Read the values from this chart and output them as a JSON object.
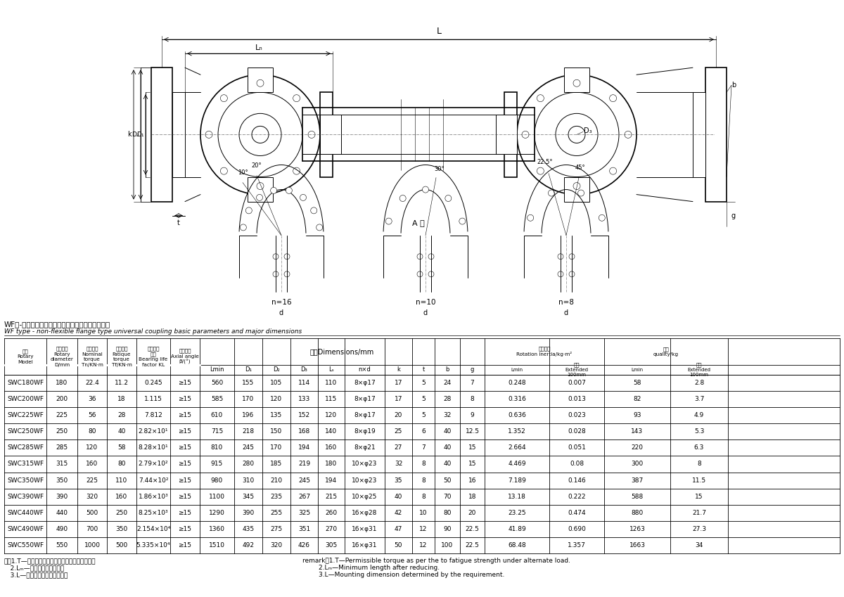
{
  "title_cn": "WF型-无伸缩法兰式万向联轴器基本参数和主要尺寸",
  "title_en": "WF type - non-flexible flange type universal coupling basic parameters and major dimensions",
  "background_color": "#ffffff",
  "table_rows": [
    [
      "SWC180WF",
      "180",
      "22.4",
      "11.2",
      "0.245",
      "≥15",
      "560",
      "155",
      "105",
      "114",
      "110",
      "8×φ17",
      "17",
      "5",
      "24",
      "7",
      "0.248",
      "0.007",
      "58",
      "2.8"
    ],
    [
      "SWC200WF",
      "200",
      "36",
      "18",
      "1.115",
      "≥15",
      "585",
      "170",
      "120",
      "133",
      "115",
      "8×φ17",
      "17",
      "5",
      "28",
      "8",
      "0.316",
      "0.013",
      "82",
      "3.7"
    ],
    [
      "SWC225WF",
      "225",
      "56",
      "28",
      "7.812",
      "≥15",
      "610",
      "196",
      "135",
      "152",
      "120",
      "8×φ17",
      "20",
      "5",
      "32",
      "9",
      "0.636",
      "0.023",
      "93",
      "4.9"
    ],
    [
      "SWC250WF",
      "250",
      "80",
      "40",
      "2.82×10¹",
      "≥15",
      "715",
      "218",
      "150",
      "168",
      "140",
      "8×φ19",
      "25",
      "6",
      "40",
      "12.5",
      "1.352",
      "0.028",
      "143",
      "5.3"
    ],
    [
      "SWC285WF",
      "285",
      "120",
      "58",
      "8.28×10¹",
      "≥15",
      "810",
      "245",
      "170",
      "194",
      "160",
      "8×φ21",
      "27",
      "7",
      "40",
      "15",
      "2.664",
      "0.051",
      "220",
      "6.3"
    ],
    [
      "SWC315WF",
      "315",
      "160",
      "80",
      "2.79×10²",
      "≥15",
      "915",
      "280",
      "185",
      "219",
      "180",
      "10×φ23",
      "32",
      "8",
      "40",
      "15",
      "4.469",
      "0.08",
      "300",
      "8"
    ],
    [
      "SWC350WF",
      "350",
      "225",
      "110",
      "7.44×10²",
      "≥15",
      "980",
      "310",
      "210",
      "245",
      "194",
      "10×φ23",
      "35",
      "8",
      "50",
      "16",
      "7.189",
      "0.146",
      "387",
      "11.5"
    ],
    [
      "SWC390WF",
      "390",
      "320",
      "160",
      "1.86×10³",
      "≥15",
      "1100",
      "345",
      "235",
      "267",
      "215",
      "10×φ25",
      "40",
      "8",
      "70",
      "18",
      "13.18",
      "0.222",
      "588",
      "15"
    ],
    [
      "SWC440WF",
      "440",
      "500",
      "250",
      "8.25×10³",
      "≥15",
      "1290",
      "390",
      "255",
      "325",
      "260",
      "16×φ28",
      "42",
      "10",
      "80",
      "20",
      "23.25",
      "0.474",
      "880",
      "21.7"
    ],
    [
      "SWC490WF",
      "490",
      "700",
      "350",
      "2.154×10⁴",
      "≥15",
      "1360",
      "435",
      "275",
      "351",
      "270",
      "16×φ31",
      "47",
      "12",
      "90",
      "22.5",
      "41.89",
      "0.690",
      "1263",
      "27.3"
    ],
    [
      "SWC550WF",
      "550",
      "1000",
      "500",
      "5.335×10⁴",
      "≥15",
      "1510",
      "492",
      "320",
      "426",
      "305",
      "16×φ31",
      "50",
      "12",
      "100",
      "22.5",
      "68.48",
      "1.357",
      "1663",
      "34"
    ]
  ],
  "notes_cn": [
    "注：1.T—在交变负荷下按疲劳强度所允许的转矩。",
    "   2.Lₘ—缩短后的最小长度。",
    "   3.L—安装长度，按需要确定。"
  ],
  "notes_en": [
    "remark：1.T—Permissible torque as per the to fatigue strength under alternate load.",
    "        2.Lₘ—Minimum length after reducing.",
    "        3.L—Mounting dimension determined by the requirement."
  ]
}
